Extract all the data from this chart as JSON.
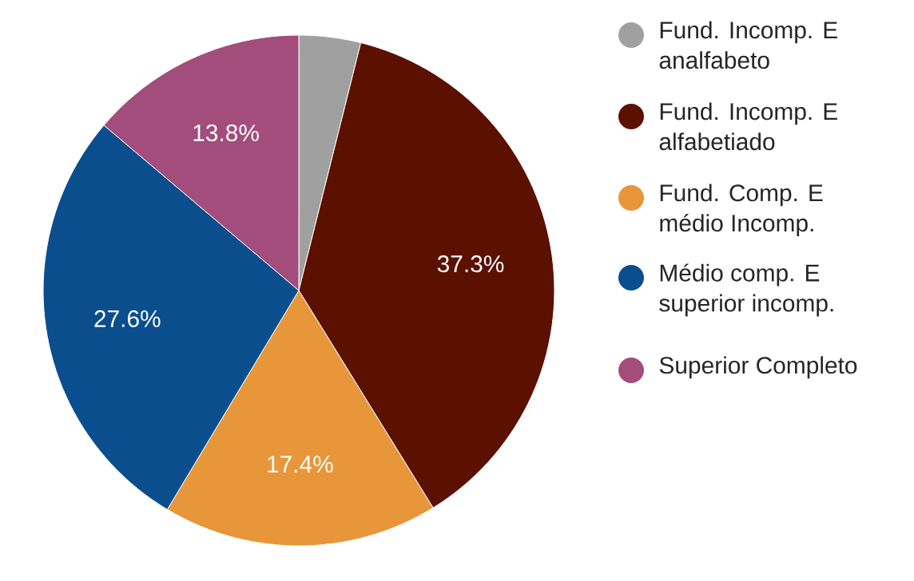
{
  "chart_data": {
    "type": "pie",
    "categories": [
      "Fund. Incomp. E analfabeto",
      "Fund. Incomp. E alfabetiado",
      "Fund. Comp. E médio Incomp.",
      "Médio comp. E superior incomp.",
      "Superior Completo"
    ],
    "values": [
      3.9,
      37.3,
      17.4,
      27.6,
      13.8
    ],
    "value_labels": [
      null,
      "37.3%",
      "17.4%",
      "27.6%",
      "13.8%"
    ],
    "colors": [
      "#a0a0a0",
      "#5c1000",
      "#e8963a",
      "#0b4e8e",
      "#a24d7c"
    ],
    "legend": "right"
  }
}
